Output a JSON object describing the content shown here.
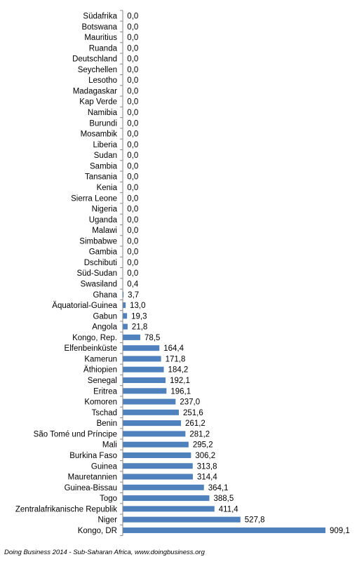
{
  "chart_data": {
    "type": "bar",
    "orientation": "horizontal",
    "categories": [
      "Südafrika",
      "Botswana",
      "Mauritius",
      "Ruanda",
      "Deutschland",
      "Seychellen",
      "Lesotho",
      "Madagaskar",
      "Kap Verde",
      "Namibia",
      "Burundi",
      "Mosambik",
      "Liberia",
      "Sudan",
      "Sambia",
      "Tansania",
      "Kenia",
      "Sierra Leone",
      "Nigeria",
      "Uganda",
      "Malawi",
      "Simbabwe",
      "Gambia",
      "Dschibuti",
      "Süd-Sudan",
      "Swasiland",
      "Ghana",
      "Äquatorial-Guinea",
      "Gabun",
      "Angola",
      "Kongo, Rep.",
      "Elfenbeinküste",
      "Kamerun",
      "Äthiopien",
      "Senegal",
      "Eritrea",
      "Komoren",
      "Tschad",
      "Benin",
      "São Tomé und Príncipe",
      "Mali",
      "Burkina Faso",
      "Guinea",
      "Mauretannien",
      "Guinea-Bissau",
      "Togo",
      "Zentralafrikanische Republik",
      "Niger",
      "Kongo, DR"
    ],
    "values": [
      0,
      0,
      0,
      0,
      0,
      0,
      0,
      0,
      0,
      0,
      0,
      0,
      0,
      0,
      0,
      0,
      0,
      0,
      0,
      0,
      0,
      0,
      0,
      0,
      0,
      0.4,
      3.7,
      13.0,
      19.3,
      21.8,
      78.5,
      164.4,
      171.8,
      184.2,
      192.1,
      196.1,
      237.0,
      251.6,
      261.2,
      281.2,
      295.2,
      306.2,
      313.8,
      314.4,
      364.1,
      388.5,
      411.4,
      527.8,
      909.1
    ],
    "data_labels": [
      "0,0",
      "0,0",
      "0,0",
      "0,0",
      "0,0",
      "0,0",
      "0,0",
      "0,0",
      "0,0",
      "0,0",
      "0,0",
      "0,0",
      "0,0",
      "0,0",
      "0,0",
      "0,0",
      "0,0",
      "0,0",
      "0,0",
      "0,0",
      "0,0",
      "0,0",
      "0,0",
      "0,0",
      "0,0",
      "0,4",
      "3,7",
      "13,0",
      "19,3",
      "21,8",
      "78,5",
      "164,4",
      "171,8",
      "184,2",
      "192,1",
      "196,1",
      "237,0",
      "251,6",
      "261,2",
      "281,2",
      "295,2",
      "306,2",
      "313,8",
      "314,4",
      "364,1",
      "388,5",
      "411,4",
      "527,8",
      "909,1"
    ],
    "xlim": [
      0,
      909.1
    ],
    "bar_color": "#4f81bd",
    "axis_color": "#868686",
    "grid": false,
    "legend": "none"
  },
  "footnote": "Doing Business 2014 - Sub-Saharan Africa, www.doingbusiness.org"
}
